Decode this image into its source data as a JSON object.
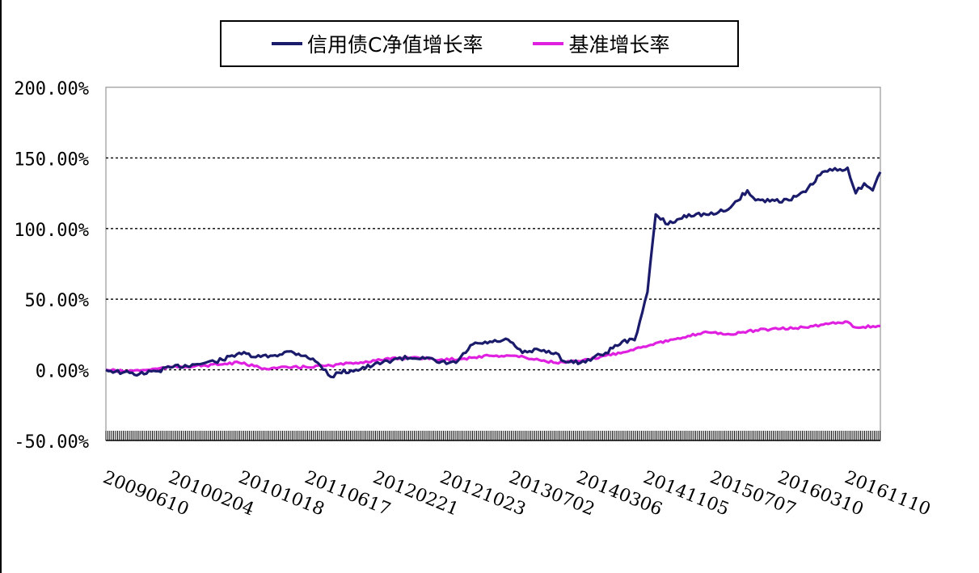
{
  "chart_data": {
    "type": "line",
    "title": "",
    "xlabel": "",
    "ylabel": "",
    "ylim": [
      -0.5,
      2.0
    ],
    "y_ticks": [
      "200.00%",
      "150.00%",
      "100.00%",
      "50.00%",
      "0.00%",
      "-50.00%"
    ],
    "y_tick_values": [
      2.0,
      1.5,
      1.0,
      0.5,
      0.0,
      -0.5
    ],
    "x_range": [
      "20090601",
      "20170301"
    ],
    "x_ticks": [
      "20090610",
      "20100204",
      "20101018",
      "20110617",
      "20120221",
      "20121023",
      "20130702",
      "20140306",
      "20141105",
      "20150707",
      "20160310",
      "20161110"
    ],
    "grid": "horizontal dashed",
    "legend_position": "top",
    "series": [
      {
        "name": "信用债C净值增长率",
        "color": "#1b1b6b",
        "points": [
          [
            "20090601",
            0.0
          ],
          [
            "20090801",
            -0.02
          ],
          [
            "20091001",
            -0.03
          ],
          [
            "20091201",
            -0.01
          ],
          [
            "20100201",
            0.02
          ],
          [
            "20100501",
            0.04
          ],
          [
            "20100801",
            0.07
          ],
          [
            "20101001",
            0.12
          ],
          [
            "20101201",
            0.09
          ],
          [
            "20110201",
            0.1
          ],
          [
            "20110401",
            0.13
          ],
          [
            "20110601",
            0.1
          ],
          [
            "20110715",
            0.05
          ],
          [
            "20110901",
            -0.05
          ],
          [
            "20111001",
            -0.02
          ],
          [
            "20111201",
            0.0
          ],
          [
            "20120201",
            0.03
          ],
          [
            "20120501",
            0.08
          ],
          [
            "20120801",
            0.09
          ],
          [
            "20121001",
            0.05
          ],
          [
            "20121201",
            0.05
          ],
          [
            "20130201",
            0.18
          ],
          [
            "20130501",
            0.2
          ],
          [
            "20130601",
            0.22
          ],
          [
            "20130801",
            0.12
          ],
          [
            "20131001",
            0.14
          ],
          [
            "20131201",
            0.12
          ],
          [
            "20140101",
            0.06
          ],
          [
            "20140301",
            0.05
          ],
          [
            "20140601",
            0.12
          ],
          [
            "20140801",
            0.2
          ],
          [
            "20140915",
            0.21
          ],
          [
            "20141101",
            0.55
          ],
          [
            "20141201",
            1.1
          ],
          [
            "20150115",
            1.03
          ],
          [
            "20150401",
            1.1
          ],
          [
            "20150701",
            1.1
          ],
          [
            "20150901",
            1.15
          ],
          [
            "20151101",
            1.27
          ],
          [
            "20151201",
            1.2
          ],
          [
            "20160401",
            1.2
          ],
          [
            "20160601",
            1.26
          ],
          [
            "20160801",
            1.4
          ],
          [
            "20161101",
            1.43
          ],
          [
            "20161201",
            1.25
          ],
          [
            "20170101",
            1.32
          ],
          [
            "20170201",
            1.27
          ],
          [
            "20170301",
            1.4
          ]
        ]
      },
      {
        "name": "基准增长率",
        "color": "#e020e0",
        "points": [
          [
            "20090601",
            0.0
          ],
          [
            "20090801",
            -0.01
          ],
          [
            "20091101",
            0.0
          ],
          [
            "20100201",
            0.02
          ],
          [
            "20100601",
            0.03
          ],
          [
            "20101001",
            0.05
          ],
          [
            "20110101",
            0.01
          ],
          [
            "20110601",
            0.02
          ],
          [
            "20110901",
            0.03
          ],
          [
            "20111201",
            0.05
          ],
          [
            "20120301",
            0.07
          ],
          [
            "20120701",
            0.09
          ],
          [
            "20121001",
            0.07
          ],
          [
            "20130101",
            0.08
          ],
          [
            "20130401",
            0.1
          ],
          [
            "20130701",
            0.1
          ],
          [
            "20131001",
            0.07
          ],
          [
            "20131201",
            0.05
          ],
          [
            "20140301",
            0.06
          ],
          [
            "20140601",
            0.1
          ],
          [
            "20140901",
            0.14
          ],
          [
            "20141201",
            0.19
          ],
          [
            "20150301",
            0.22
          ],
          [
            "20150601",
            0.27
          ],
          [
            "20150901",
            0.25
          ],
          [
            "20151201",
            0.28
          ],
          [
            "20160301",
            0.29
          ],
          [
            "20160601",
            0.3
          ],
          [
            "20160901",
            0.33
          ],
          [
            "20161101",
            0.34
          ],
          [
            "20161201",
            0.3
          ],
          [
            "20170301",
            0.31
          ]
        ]
      }
    ]
  }
}
